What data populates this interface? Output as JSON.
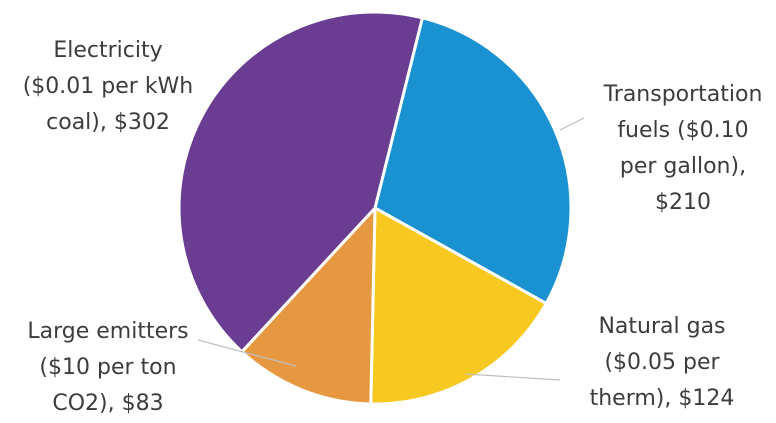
{
  "chart_data": {
    "type": "pie",
    "currency": "$",
    "slices": [
      {
        "name": "Transportation fuels",
        "label_lines": [
          "Transportation",
          "fuels ($0.10",
          "per gallon),",
          "$210"
        ],
        "value": 210,
        "color": "#1a91d0"
      },
      {
        "name": "Natural gas",
        "label_lines": [
          "Natural gas",
          "($0.05 per",
          "therm),  $124"
        ],
        "value": 124,
        "color": "#f6c820"
      },
      {
        "name": "Large emitters",
        "label_lines": [
          "Large emitters",
          "($10 per ton",
          "CO2),  $83"
        ],
        "value": 83,
        "color": "#e69841"
      },
      {
        "name": "Electricity",
        "label_lines": [
          "Electricity",
          "($0.01 per kWh",
          "coal),  $302"
        ],
        "value": 302,
        "color": "#6a3d92"
      }
    ],
    "title": "",
    "legend": "none"
  }
}
